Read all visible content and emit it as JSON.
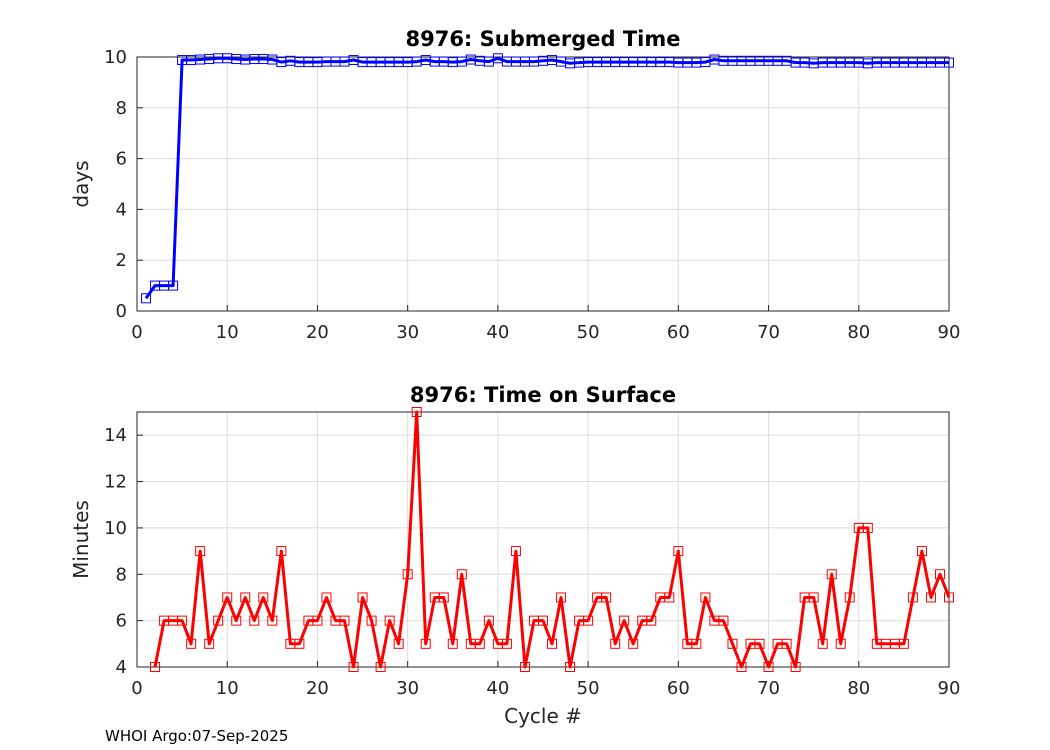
{
  "footer": "WHOI Argo:07-Sep-2025",
  "chart_data": [
    {
      "type": "line",
      "title": "8976: Submerged Time",
      "xlabel": "",
      "ylabel": "days",
      "xlim": [
        0,
        90
      ],
      "ylim": [
        0,
        10
      ],
      "xticks": [
        "0",
        "10",
        "20",
        "30",
        "40",
        "50",
        "60",
        "70",
        "80",
        "90"
      ],
      "yticks": [
        "0",
        "2",
        "4",
        "6",
        "8",
        "10"
      ],
      "grid": true,
      "color": "#0000ff",
      "marker": "square",
      "x": [
        1,
        2,
        3,
        4,
        5,
        6,
        7,
        8,
        9,
        10,
        11,
        12,
        13,
        14,
        15,
        16,
        17,
        18,
        19,
        20,
        21,
        22,
        23,
        24,
        25,
        26,
        27,
        28,
        29,
        30,
        31,
        32,
        33,
        34,
        35,
        36,
        37,
        38,
        39,
        40,
        41,
        42,
        43,
        44,
        45,
        46,
        47,
        48,
        49,
        50,
        51,
        52,
        53,
        54,
        55,
        56,
        57,
        58,
        59,
        60,
        61,
        62,
        63,
        64,
        65,
        66,
        67,
        68,
        69,
        70,
        71,
        72,
        73,
        74,
        75,
        76,
        77,
        78,
        79,
        80,
        81,
        82,
        83,
        84,
        85,
        86,
        87,
        88,
        89,
        90
      ],
      "y": [
        0.5,
        1.0,
        1.0,
        1.0,
        9.88,
        9.88,
        9.9,
        9.92,
        9.95,
        9.95,
        9.92,
        9.9,
        9.92,
        9.92,
        9.9,
        9.8,
        9.85,
        9.8,
        9.8,
        9.8,
        9.82,
        9.82,
        9.82,
        9.88,
        9.8,
        9.8,
        9.8,
        9.8,
        9.8,
        9.8,
        9.82,
        9.88,
        9.82,
        9.82,
        9.8,
        9.82,
        9.9,
        9.85,
        9.82,
        9.95,
        9.82,
        9.82,
        9.82,
        9.82,
        9.85,
        9.88,
        9.82,
        9.75,
        9.78,
        9.8,
        9.8,
        9.8,
        9.8,
        9.8,
        9.8,
        9.8,
        9.8,
        9.8,
        9.8,
        9.78,
        9.78,
        9.78,
        9.8,
        9.9,
        9.85,
        9.85,
        9.85,
        9.85,
        9.85,
        9.85,
        9.85,
        9.85,
        9.78,
        9.78,
        9.75,
        9.78,
        9.78,
        9.78,
        9.78,
        9.78,
        9.75,
        9.78,
        9.78,
        9.78,
        9.78,
        9.78,
        9.78,
        9.78,
        9.78,
        9.78
      ]
    },
    {
      "type": "line",
      "title": "8976: Time on Surface",
      "xlabel": "Cycle #",
      "ylabel": "Minutes",
      "xlim": [
        0,
        90
      ],
      "ylim": [
        4,
        15
      ],
      "xticks": [
        "0",
        "10",
        "20",
        "30",
        "40",
        "50",
        "60",
        "70",
        "80",
        "90"
      ],
      "yticks": [
        "4",
        "6",
        "8",
        "10",
        "12",
        "14"
      ],
      "grid": true,
      "color": "#ff0000",
      "marker": "square",
      "x": [
        2,
        3,
        4,
        5,
        6,
        7,
        8,
        9,
        10,
        11,
        12,
        13,
        14,
        15,
        16,
        17,
        18,
        19,
        20,
        21,
        22,
        23,
        24,
        25,
        26,
        27,
        28,
        29,
        30,
        31,
        32,
        33,
        34,
        35,
        36,
        37,
        38,
        39,
        40,
        41,
        42,
        43,
        44,
        45,
        46,
        47,
        48,
        49,
        50,
        51,
        52,
        53,
        54,
        55,
        56,
        57,
        58,
        59,
        60,
        61,
        62,
        63,
        64,
        65,
        66,
        67,
        68,
        69,
        70,
        71,
        72,
        73,
        74,
        75,
        76,
        77,
        78,
        79,
        80,
        81,
        82,
        83,
        84,
        85,
        86,
        87,
        88,
        89,
        90
      ],
      "y": [
        4,
        6,
        6,
        6,
        5,
        9,
        5,
        6,
        7,
        6,
        7,
        6,
        7,
        6,
        9,
        5,
        5,
        6,
        6,
        7,
        6,
        6,
        4,
        7,
        6,
        4,
        6,
        5,
        8,
        15,
        5,
        7,
        7,
        5,
        8,
        5,
        5,
        6,
        5,
        5,
        9,
        4,
        6,
        6,
        5,
        7,
        4,
        6,
        6,
        7,
        7,
        5,
        6,
        5,
        6,
        6,
        7,
        7,
        9,
        5,
        5,
        7,
        6,
        6,
        5,
        4,
        5,
        5,
        4,
        5,
        5,
        4,
        7,
        7,
        5,
        8,
        5,
        7,
        10,
        10,
        5,
        5,
        5,
        5,
        7,
        9,
        7,
        8,
        7
      ]
    }
  ]
}
